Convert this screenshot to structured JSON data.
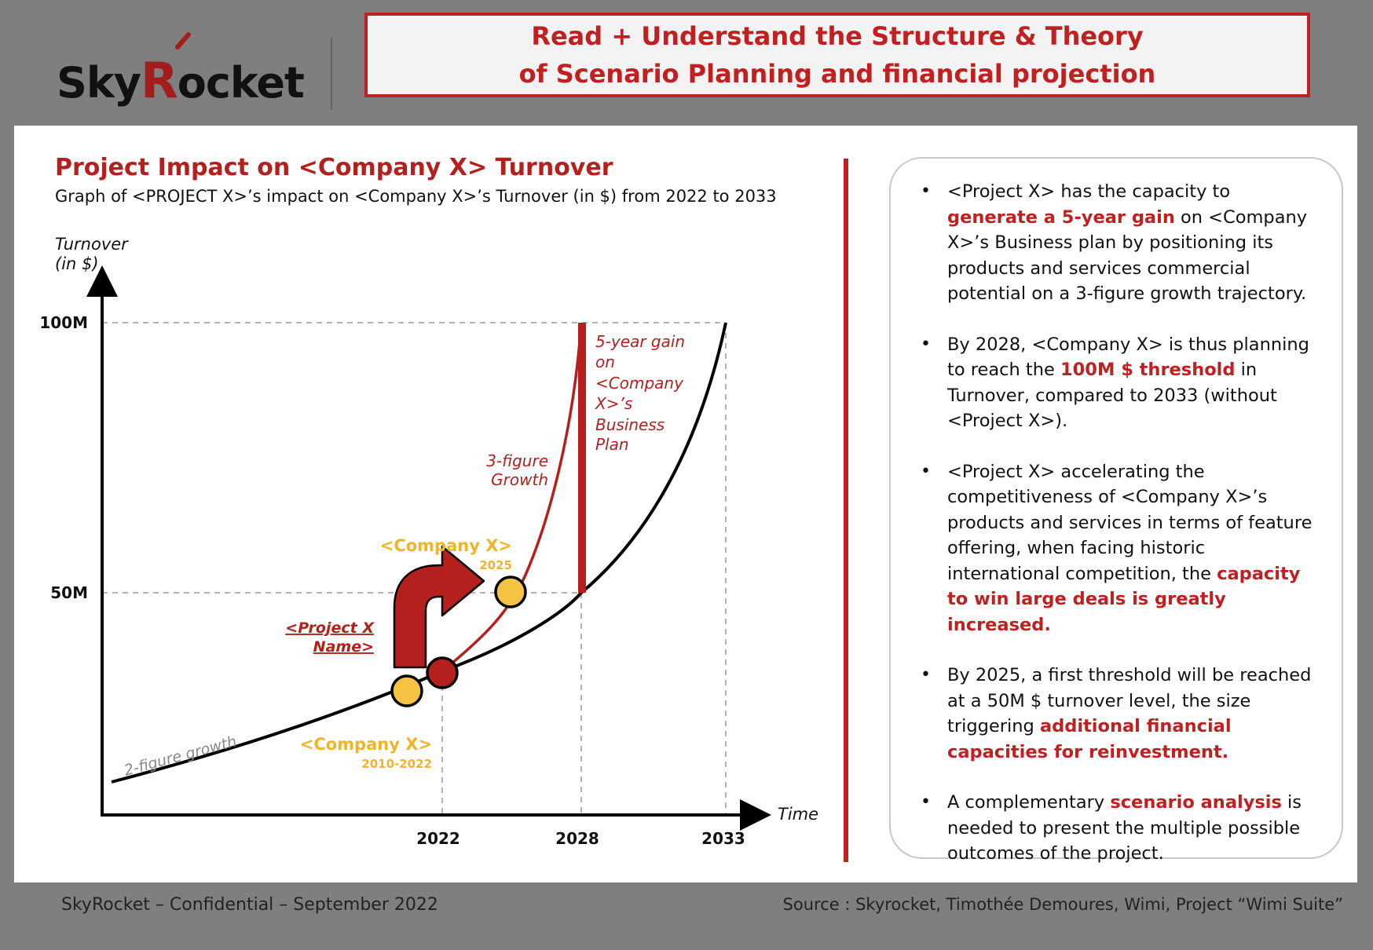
{
  "brand": {
    "name_prefix": "Sky",
    "name_r": "R",
    "name_suffix": "ocket"
  },
  "header": {
    "line1": "Read + Understand the Structure & Theory",
    "line2": "of Scenario Planning and financial projection"
  },
  "chart": {
    "title": "Project Impact on <Company X> Turnover",
    "subtitle": "Graph of <PROJECT X>’s impact on <Company X>’s Turnover (in $) from 2022 to 2033",
    "y_axis_label_1": "Turnover",
    "y_axis_label_2": "(in $)",
    "x_axis_label": "Time",
    "y_ticks": [
      "100M",
      "50M"
    ],
    "x_ticks": [
      "2022",
      "2028",
      "2033"
    ],
    "annotations": {
      "baseline": "2-figure growth",
      "accelerated_1": "3-figure",
      "accelerated_2": "Growth",
      "gain_lines": [
        "5-year gain",
        "on",
        "<Company",
        "X>’s",
        "Business",
        "Plan"
      ],
      "project_1": "<Project X",
      "project_2": "Name>",
      "company_2025": "<Company X>",
      "year_2025": "2025",
      "company_2010": "<Company X>",
      "year_2010": "2010-2022"
    },
    "colors": {
      "accent_red": "#b5201e",
      "marker_yellow": "#f5c242",
      "label_yellow": "#f0b429",
      "axis": "#000000"
    }
  },
  "bullets": [
    {
      "parts": [
        {
          "t": "<Project X> has the capacity to ",
          "h": false
        },
        {
          "t": "generate a 5-year gain",
          "h": true
        },
        {
          "t": " on <Company X>’s Business plan by positioning its products and services commercial potential on a 3-figure growth trajectory.",
          "h": false
        }
      ]
    },
    {
      "parts": [
        {
          "t": "By 2028, <Company X> is thus planning to reach the ",
          "h": false
        },
        {
          "t": "100M $ threshold",
          "h": true
        },
        {
          "t": " in Turnover, compared to 2033 (without <Project X>).",
          "h": false
        }
      ]
    },
    {
      "parts": [
        {
          "t": "<Project X> accelerating the competitiveness of <Company X>’s products and services in terms of feature offering, when facing historic international competition, the ",
          "h": false
        },
        {
          "t": "capacity to win large deals is greatly increased.",
          "h": true
        }
      ]
    },
    {
      "parts": [
        {
          "t": "By 2025, a first threshold will be reached at a 50M $ turnover level, the size triggering ",
          "h": false
        },
        {
          "t": "additional financial capacities for reinvestment.",
          "h": true
        }
      ]
    },
    {
      "parts": [
        {
          "t": "A complementary ",
          "h": false
        },
        {
          "t": "scenario analysis",
          "h": true
        },
        {
          "t": " is needed to present the multiple possible outcomes of the project.",
          "h": false
        }
      ]
    }
  ],
  "footer": {
    "left": "SkyRocket – Confidential – September 2022",
    "right": "Source : Skyrocket, Timothée Demoures, Wimi, Project “Wimi Suite”"
  }
}
